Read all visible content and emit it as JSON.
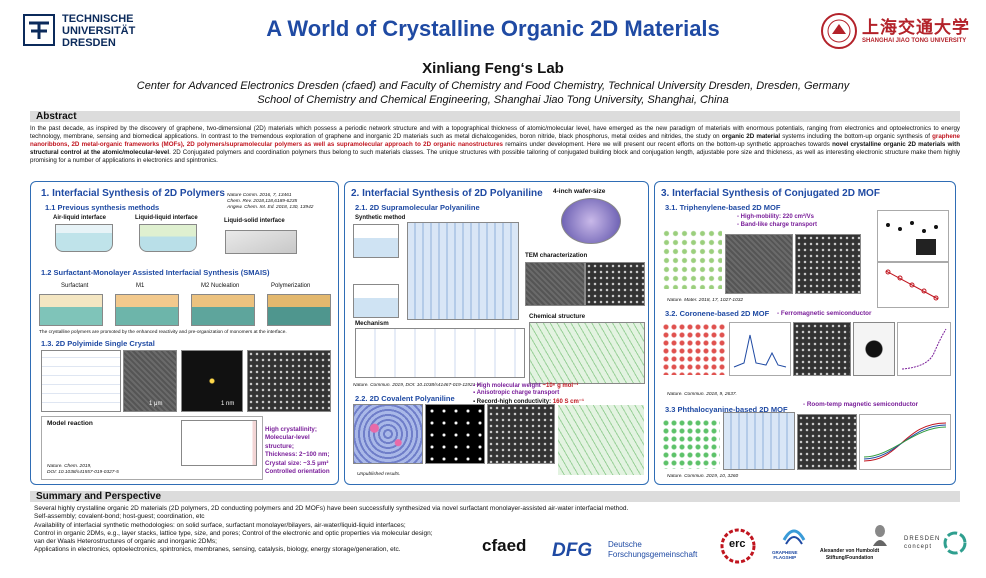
{
  "header": {
    "tud_name": "TECHNISCHE\nUNIVERSITÄT\nDRESDEN",
    "title": "A World of Crystalline Organic 2D Materials",
    "sjtu_cn": "上海交通大学",
    "sjtu_en": "SHANGHAI JIAO TONG UNIVERSITY"
  },
  "lab": "Xinliang Feng‘s Lab",
  "affiliation1": "Center for Advanced Electronics Dresden (cfaed) and Faculty of Chemistry and Food Chemistry, Technical University Dresden, Dresden, Germany",
  "affiliation2": "School of Chemistry and Chemical Engineering, Shanghai Jiao Tong University, Shanghai, China",
  "abstract": {
    "heading": "Abstract",
    "text_a": "In the past decade, as inspired by the discovery of graphene, two-dimensional (2D) materials which possess a periodic network structure and with a topographical thickness of atomic/molecular level, have emerged as the new paradigm of materials with enormous potentials, ranging from electronics and optoelectronics to energy technology, membrane, sensing and biomedical applications. In contrast to the tremendous exploration of graphene and inorganic 2D materials such as metal dichalcogenides, boron nitride, black phosphorus, metal oxides and nitrides, the study on ",
    "b1": "organic 2D material",
    "text_b": " systems including the bottom-up organic synthesis of ",
    "r1": "graphene nanoribbons, 2D metal-organic frameworks (MOFs), 2D polymers/supramolecular polymers as well as supramolecular approach to 2D organic nanostructures",
    "text_c": " remains under development. Here we will present our recent efforts on the bottom-up synthetic approaches towards ",
    "b2": "novel crystalline organic 2D materials with structural control at the atomic/molecular-level",
    "text_d": ". 2D Conjugated polymers and coordination polymers thus belong to such materials classes. The unique structures with possible tailoring of conjugated building block and conjugation length, adjustable pore size and thickness, as well as interesting electronic structure make them highly promising for a number of applications in electronics and spintronics."
  },
  "panel1": {
    "title": "1. Interfacial Synthesis of 2D Polymers",
    "refs": "Nature Comm. 2016, 7, 13461\nChem. Rev. 2018,118,6189-6235\nAngew. Chem. Int. Ed. 2018, 130, 13942",
    "s11": "1.1 Previous synthesis methods",
    "m1": "Air-liquid interface",
    "m2": "Liquid-liquid interface",
    "m3": "Liquid-solid interface",
    "s12": "1.2 Surfactant-Monolayer Assisted Interfacial Synthesis (SMAIS)",
    "st1": "Surfactant",
    "st2": "M1",
    "st3": "M2 Nucleation",
    "st4": "Polymerization",
    "note": "The crystalline polymers are promoted by the enhanced reactivity and pre-organization of monomers at the interface.",
    "s13": "1.3. 2D Polyimide Single Crystal",
    "scale1": "1 μm",
    "scale2": "1 nm",
    "model": "Model reaction",
    "hl1": "High crystallinity;",
    "hl2": "Molecular-level structure;",
    "hl3": "Thickness: 2~100 nm;",
    "hl4": "Crystal size: ~3.5 μm²",
    "hl5": "Controlled orientation",
    "ref2": "Nature. Chem. 2019,\nDOI: 10.1038/s41557-019-0327-5"
  },
  "panel2": {
    "title": "2. Interfacial Synthesis of 2D Polyaniline",
    "wafer": "4-inch wafer-size",
    "s21": "2.1. 2D Supramolecular Polyaniline",
    "synth": "Synthetic method",
    "tem": "TEM characterization",
    "mech": "Mechanism",
    "chem": "Chemical structure",
    "ref": "Nature. Commun. 2019, DOI: 10.1038/s41467-019-11921-3",
    "b1": "High molecular weight",
    "b1v": "~10⁶ g mol⁻¹",
    "b2": "Anisotropic charge transport",
    "b3": "Record-high conductivity:",
    "b3v": "160 S cm⁻¹",
    "s22": "2.2. 2D Covalent Polyaniline",
    "unpub": "Unpublished results."
  },
  "panel3": {
    "title": "3. Interfacial Synthesis of Conjugated 2D MOF",
    "s31": "3.1. Triphenylene-based 2D MOF",
    "p1": "High-mobility: 220 cm²/Vs",
    "p2": "Band-like charge transport",
    "ref1": "Nature. Mater. 2018, 17, 1027-1032",
    "s32": "3.2. Coronene-based 2D MOF",
    "p3": "- Ferromagnetic semiconductor",
    "ref2": "Nature. Commun. 2018, 9, 2637.",
    "s33": "3.3 Phthalocyanine-based 2D MOF",
    "p4": "- Room-temp magnetic semiconductor",
    "ref3": "Nature. Commun. 2019, 10, 3260"
  },
  "summary": {
    "heading": "Summary and Perspective",
    "lines": [
      "Several highly crystalline organic 2D materials (2D polymers, 2D conducting polymers and 2D MOFs) have been successfully synthesized via novel surfactant monolayer-assisted air-water interfacial method.",
      "Self-assembly; covalent-bond; host-guest; coordination, etc",
      "Availability of interfacial synthetic methodologies: on solid surface, surfactant monolayer/bilayers, air-water/liquid-liquid interfaces;",
      "Control in organic 2DMs, e.g., layer stacks, lattice type, size, and pores;  Control of the electronic and optic properties via molecular design;",
      "van der Waals Heterostructures of organic and inorganic 2DMs;",
      "Applications in electronics, optoelectronics, spintronics, membranes, sensing, catalysis, biology, energy storage/generation, etc."
    ]
  },
  "logos": {
    "cfaed": "cfaed",
    "dfg": "DFG",
    "dfg_text": "Deutsche\nForschungsgemeinschaft",
    "erc": "erc",
    "graphene": "GRAPHENE\nFLAGSHIP",
    "humboldt": "Alexander von Humboldt\nStiftung/Foundation",
    "dresden": "DRESDEN\nconcept"
  },
  "colors": {
    "title_blue": "#1f4aa3",
    "panel_border": "#2f6db5",
    "highlight_red": "#c0151f",
    "purple": "#7a1f9a",
    "sjtu_red": "#b3222a"
  }
}
